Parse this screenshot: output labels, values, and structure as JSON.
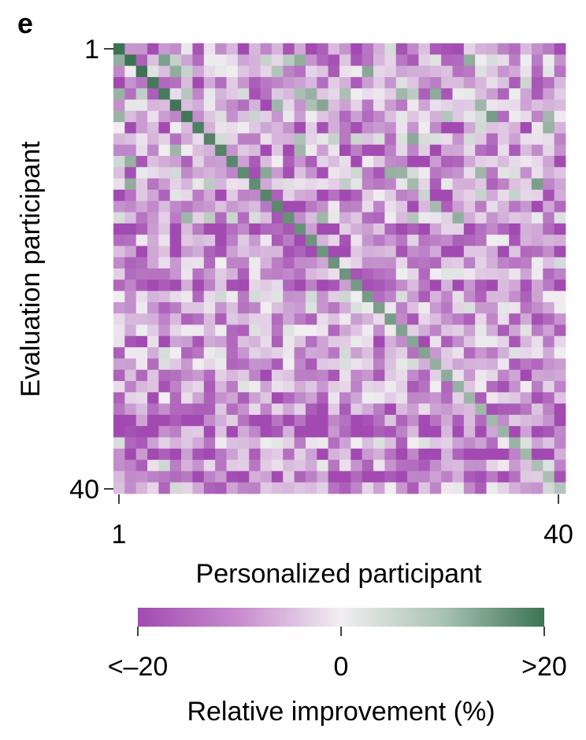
{
  "panel_letter": "e",
  "chart_data": {
    "type": "heatmap",
    "n_rows": 40,
    "n_cols": 40,
    "seed": 7,
    "x_ticks": [
      "1",
      "40"
    ],
    "y_ticks": [
      "1",
      "40"
    ],
    "xlabel": "Personalized participant",
    "ylabel": "Evaluation participant",
    "colorbar": {
      "label": "Relative improvement (%)",
      "ticks": [
        "<–20",
        "0",
        ">20"
      ],
      "range": [
        -20,
        20
      ]
    },
    "colormap": {
      "negative": "#a24ab1",
      "neutral": "#f1eef1",
      "positive": "#3c7353"
    },
    "values_description": "diagonal high (~+20), off-diagonal mostly negative"
  }
}
